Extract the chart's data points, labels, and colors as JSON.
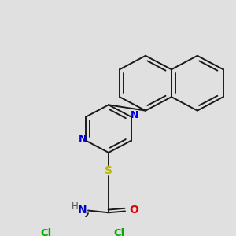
{
  "background_color": "#e0e0e0",
  "bond_color": "#1a1a1a",
  "bond_width": 1.4,
  "figsize": [
    3.0,
    3.0
  ],
  "dpi": 100,
  "xlim": [
    0,
    300
  ],
  "ylim": [
    0,
    300
  ]
}
